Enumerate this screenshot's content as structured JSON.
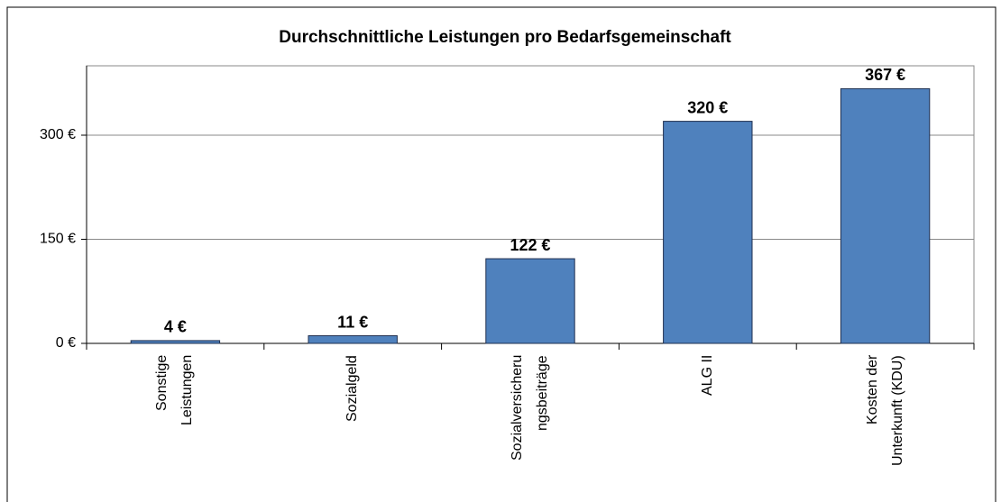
{
  "chart_data": {
    "type": "bar",
    "title": "Durchschnittliche Leistungen pro Bedarfsgemeinschaft",
    "categories": [
      "Sonstige\nLeistungen",
      "Sozialgeld",
      "Sozialversicheru\nngsbeiträge",
      "ALG II",
      "Kosten der\nUnterkunft (KDU)"
    ],
    "values": [
      4,
      11,
      122,
      320,
      367
    ],
    "value_labels": [
      "4 €",
      "11 €",
      "122 €",
      "320 €",
      "367 €"
    ],
    "color": "#4f81bd",
    "ylim": [
      0,
      400
    ],
    "yticks": [
      {
        "value": 0,
        "label": "0 €"
      },
      {
        "value": 150,
        "label": "150 €"
      },
      {
        "value": 300,
        "label": "300 €"
      }
    ],
    "grid": true
  }
}
